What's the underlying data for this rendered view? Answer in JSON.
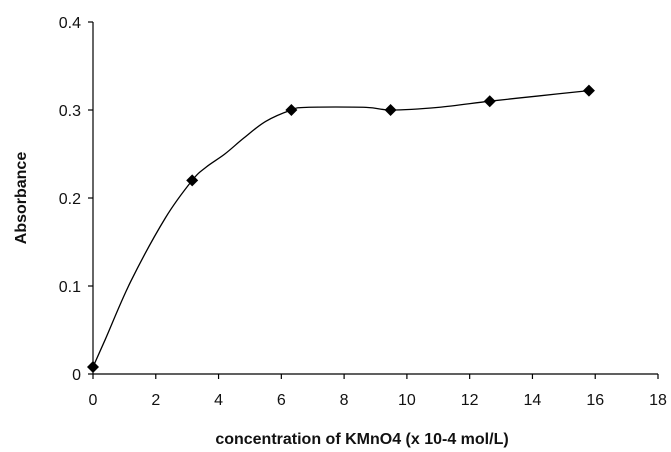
{
  "chart_data": {
    "type": "scatter",
    "xlabel": "concentration of KMnO4 (x 10-4 mol/L)",
    "ylabel": "Absorbance",
    "xlim": [
      0,
      18
    ],
    "ylim": [
      0,
      0.4
    ],
    "x_ticks": [
      "0",
      "2",
      "4",
      "6",
      "8",
      "10",
      "12",
      "14",
      "16",
      "18"
    ],
    "y_ticks": [
      "0",
      "0.1",
      "0.2",
      "0.3",
      "0.4"
    ],
    "grid": false,
    "legend": "none",
    "marker": "diamond",
    "series": [
      {
        "x": [
          0,
          3.16,
          6.32,
          9.48,
          12.64,
          15.8
        ],
        "y": [
          0.008,
          0.22,
          0.3,
          0.3,
          0.31,
          0.322
        ]
      }
    ],
    "curve": {
      "x": [
        0,
        0.4,
        1.2,
        2.3,
        3.16,
        3.6,
        4.2,
        4.8,
        5.5,
        6.32,
        6.8,
        8.7,
        9.48,
        11,
        12.64,
        14.2,
        15.8
      ],
      "y": [
        0.008,
        0.04,
        0.105,
        0.177,
        0.22,
        0.235,
        0.25,
        0.268,
        0.287,
        0.3,
        0.303,
        0.303,
        0.3,
        0.303,
        0.31,
        0.316,
        0.322
      ]
    }
  }
}
